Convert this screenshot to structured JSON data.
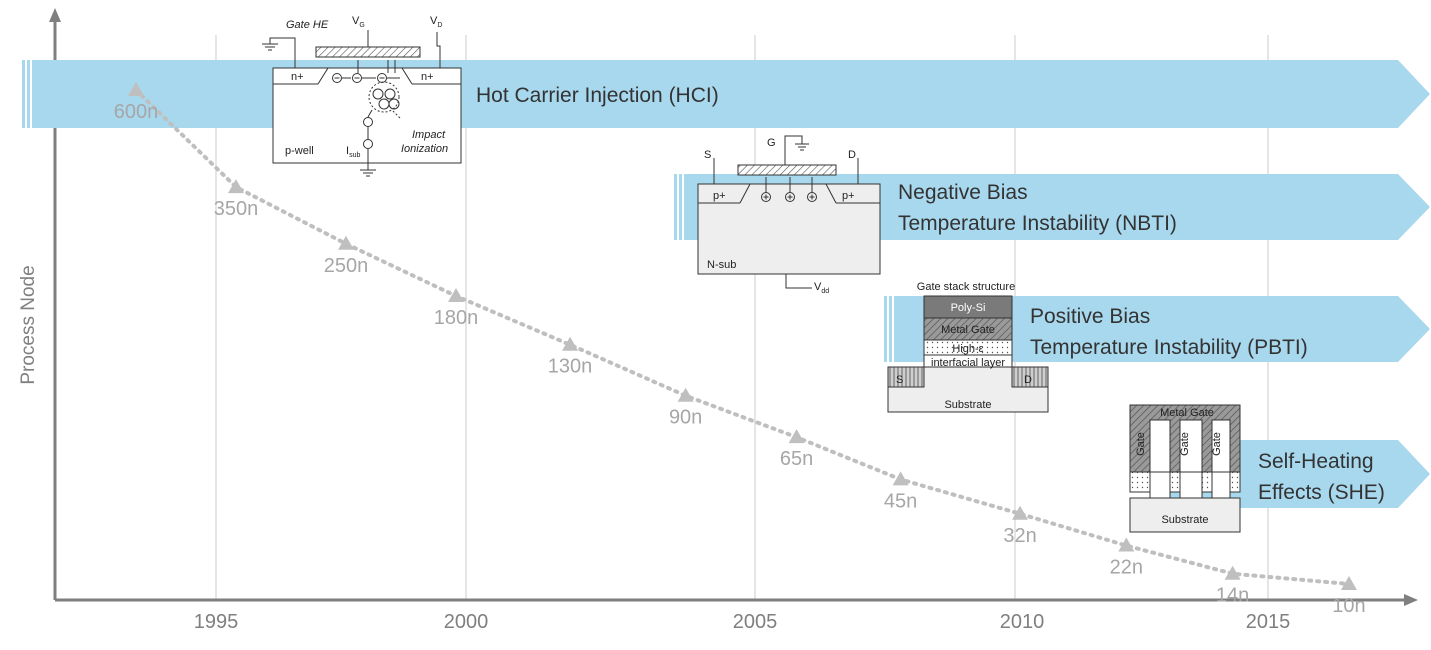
{
  "y_axis_label": "Process Node",
  "years": [
    "1995",
    "2000",
    "2005",
    "2010",
    "2015"
  ],
  "process_nodes": [
    {
      "label": "600n",
      "year": 1993.4
    },
    {
      "label": "350n",
      "year": 1995.4
    },
    {
      "label": "250n",
      "year": 1997.6
    },
    {
      "label": "180n",
      "year": 1999.8
    },
    {
      "label": "130n",
      "year": 2001.8
    },
    {
      "label": "90n",
      "year": 2003.8
    },
    {
      "label": "65n",
      "year": 2005.8
    },
    {
      "label": "45n",
      "year": 2007.8
    },
    {
      "label": "32n",
      "year": 2010.1
    },
    {
      "label": "22n",
      "year": 2012.2
    },
    {
      "label": "14n",
      "year": 2014.3
    },
    {
      "label": "10n",
      "year": 2016.6
    }
  ],
  "bands": {
    "hci": {
      "line1": "Hot Carrier Injection (HCI)"
    },
    "nbti": {
      "line1": "Negative Bias",
      "line2": "Temperature Instability (NBTI)"
    },
    "pbti": {
      "line1": "Positive Bias",
      "line2": "Temperature Instability (PBTI)"
    },
    "she": {
      "line1": "Self-Heating",
      "line2": "Effects (SHE)"
    }
  },
  "hci_diagram": {
    "gate_he": "Gate HE",
    "vg": "V",
    "vg_sub": "G",
    "vd": "V",
    "vd_sub": "D",
    "n_left": "n+",
    "n_right": "n+",
    "well": "p-well",
    "isub": "I",
    "isub_sub": "sub",
    "impact1": "Impact",
    "impact2": "Ionization"
  },
  "nbti_diagram": {
    "s": "S",
    "g": "G",
    "d": "D",
    "p_left": "p+",
    "p_right": "p+",
    "nsub": "N-sub",
    "vdd": "V",
    "vdd_sub": "dd"
  },
  "pbti_diagram": {
    "title": "Gate stack structure",
    "poly": "Poly-Si",
    "metal": "Metal Gate",
    "highk": "High-ε",
    "interfacial": "interfacial layer",
    "s": "S",
    "d": "D",
    "substrate": "Substrate"
  },
  "she_diagram": {
    "metal_gate": "Metal Gate",
    "gate1": "Gate",
    "gate2": "Gate",
    "gate3": "Gate",
    "substrate": "Substrate"
  },
  "colors": {
    "band": "#a8d8ee",
    "marker": "#bfbfbf",
    "node_text": "#a6a6a6",
    "axis": "#7f7f7f",
    "grid": "#bfbfbf"
  }
}
